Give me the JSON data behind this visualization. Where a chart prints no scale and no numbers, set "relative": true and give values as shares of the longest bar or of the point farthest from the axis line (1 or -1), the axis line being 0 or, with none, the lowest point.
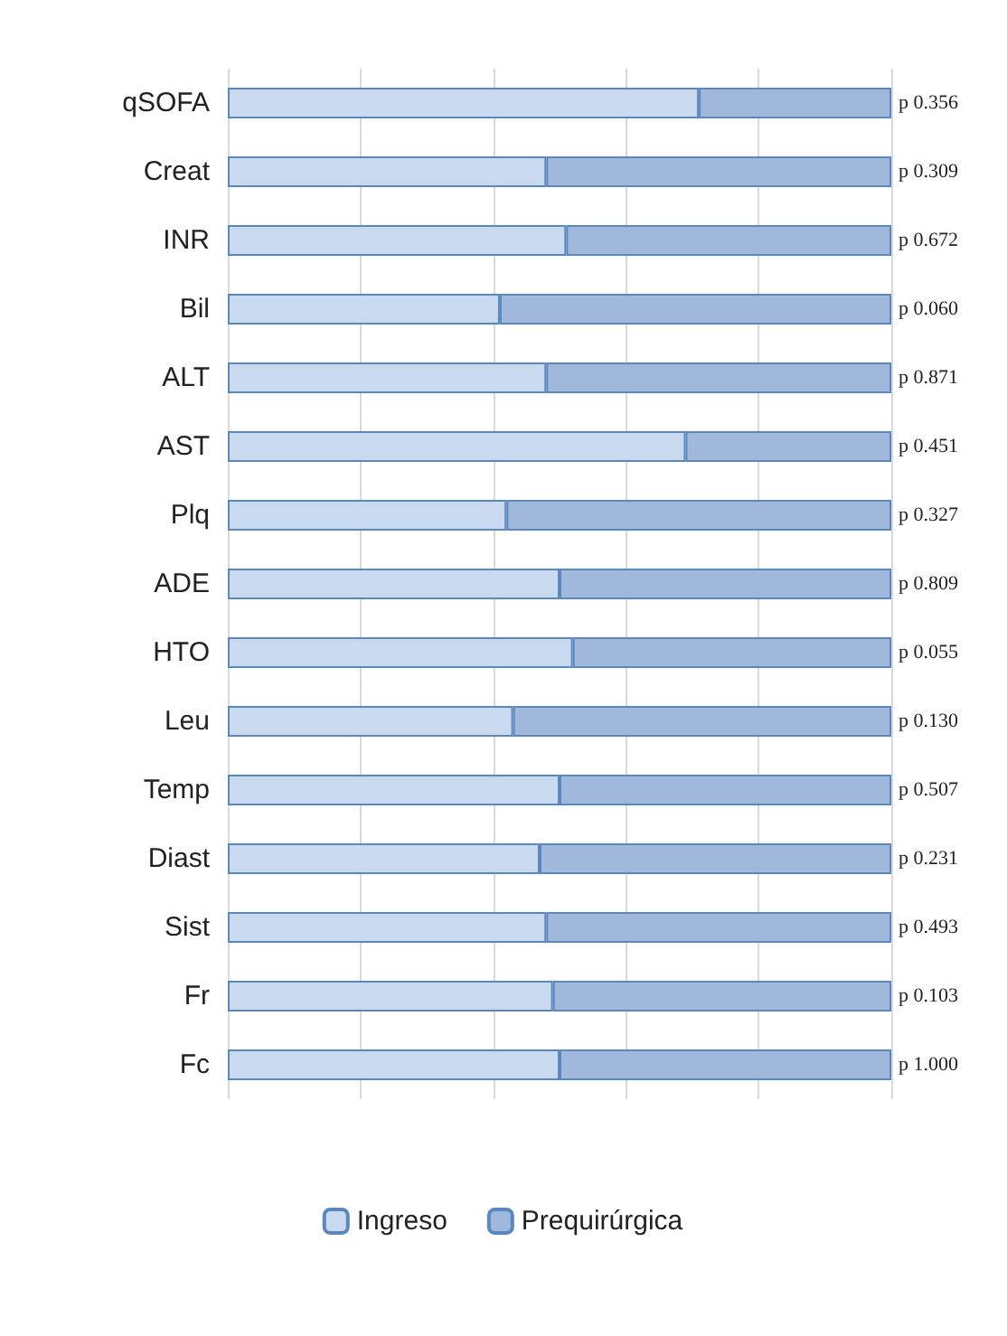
{
  "chart_data": {
    "type": "bar",
    "orientation": "horizontal",
    "stacked": true,
    "relative": true,
    "grid": "x",
    "legend": "bottom",
    "categories": [
      "qSOFA",
      "Creat",
      "INR",
      "Bil",
      "ALT",
      "AST",
      "Plq",
      "ADE",
      "HTO",
      "Leu",
      "Temp",
      "Diast",
      "Sist",
      "Fr",
      "Fc"
    ],
    "series": [
      {
        "name": "Ingreso",
        "color": "#c9d9f0",
        "values": [
          0.71,
          0.48,
          0.51,
          0.41,
          0.48,
          0.69,
          0.42,
          0.5,
          0.52,
          0.43,
          0.5,
          0.47,
          0.48,
          0.49,
          0.5
        ]
      },
      {
        "name": "Prequirúrgica",
        "color": "#9fb8dc",
        "values": [
          0.29,
          0.52,
          0.49,
          0.59,
          0.52,
          0.31,
          0.58,
          0.5,
          0.48,
          0.57,
          0.5,
          0.53,
          0.52,
          0.51,
          0.5
        ]
      }
    ],
    "annotations": [
      "p 0.356",
      "p 0.309",
      "p 0.672",
      "p 0.060",
      "p 0.871",
      "p 0.451",
      "p 0.327",
      "p 0.809",
      "p 0.055",
      "p 0.130",
      "p 0.507",
      "p 0.231",
      "p 0.493",
      "p 0.103",
      "p 1.000"
    ]
  }
}
